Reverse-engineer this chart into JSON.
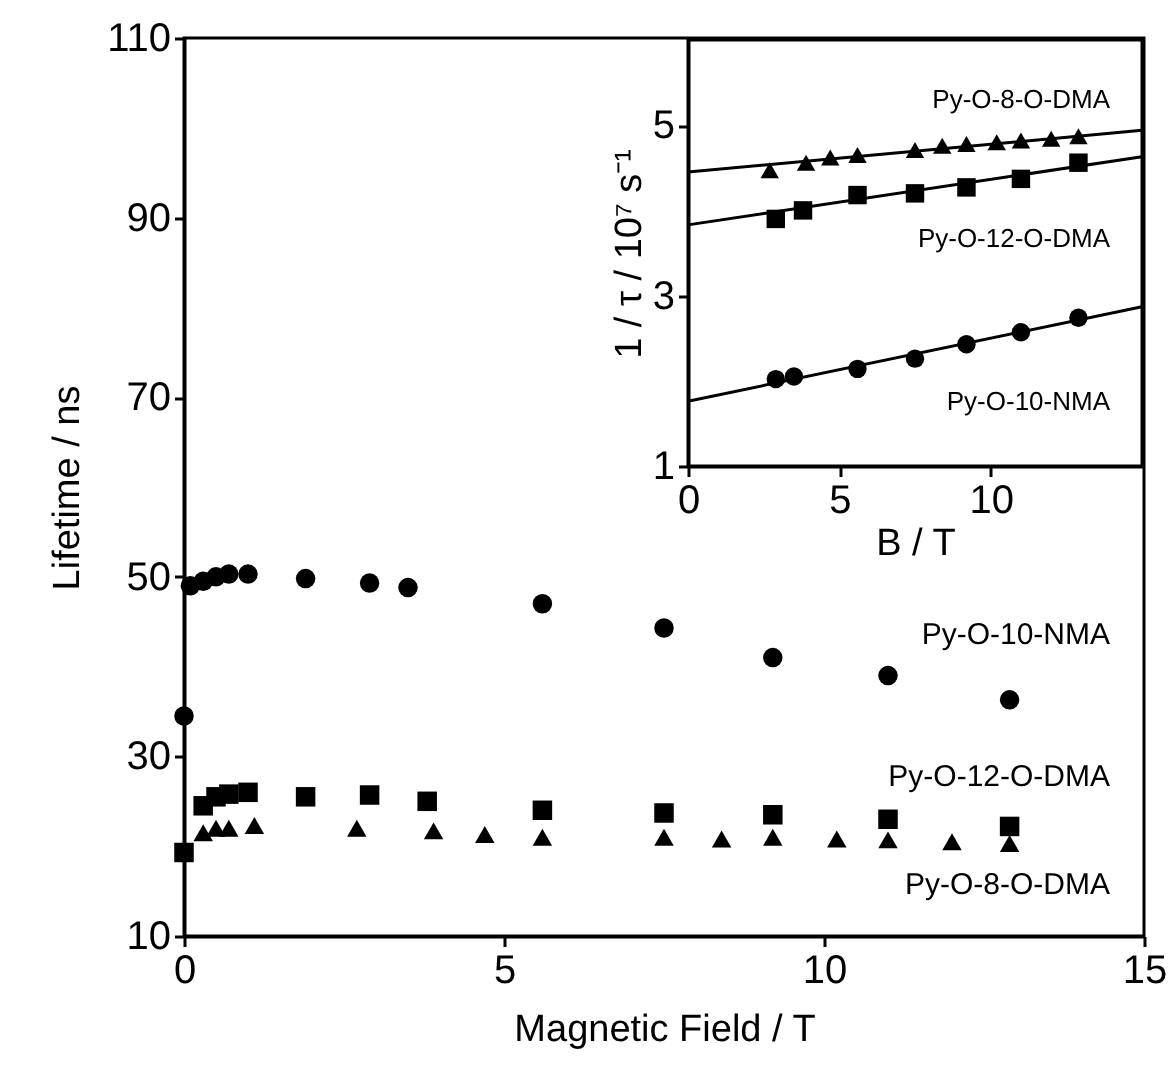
{
  "chart_data": [
    {
      "type": "scatter",
      "xlabel": "Magnetic Field / T",
      "ylabel": "Lifetime / ns",
      "xlim": [
        0,
        15
      ],
      "xticks": [
        0,
        5,
        10,
        15
      ],
      "ylim": [
        10,
        110
      ],
      "yticks": [
        10,
        30,
        50,
        70,
        90,
        110
      ],
      "grid": false,
      "series": [
        {
          "name": "Py-O-10-NMA",
          "color": "#000000",
          "marker": "circle",
          "x": [
            0,
            0.1,
            0.3,
            0.5,
            0.7,
            1.0,
            1.9,
            2.9,
            3.5,
            5.6,
            7.5,
            9.2,
            11,
            12.9
          ],
          "values": [
            34.5,
            49,
            49.5,
            50,
            50.3,
            50.3,
            49.8,
            49.3,
            48.8,
            47,
            44.3,
            41,
            39,
            36.3
          ]
        },
        {
          "name": "Py-O-12-O-DMA",
          "color": "#000000",
          "marker": "square",
          "x": [
            0,
            0.3,
            0.5,
            0.7,
            1.0,
            1.9,
            2.9,
            3.8,
            5.6,
            7.5,
            9.2,
            11,
            12.9
          ],
          "values": [
            19.3,
            24.5,
            25.5,
            25.8,
            26,
            25.5,
            25.7,
            25,
            24,
            23.7,
            23.5,
            23,
            22.2
          ]
        },
        {
          "name": "Py-O-8-O-DMA",
          "color": "#000000",
          "marker": "triangle",
          "x": [
            0.3,
            0.5,
            0.7,
            1.1,
            2.7,
            3.9,
            4.7,
            5.6,
            7.5,
            8.4,
            9.2,
            10.2,
            11,
            12,
            12.9
          ],
          "values": [
            21.5,
            22,
            22,
            22.3,
            22,
            21.7,
            21.3,
            21,
            21,
            20.8,
            21,
            20.8,
            20.7,
            20.5,
            20.3
          ]
        }
      ]
    },
    {
      "type": "scatter",
      "xlabel": "B / T",
      "ylabel": "1 / τ / 10⁷ s⁻¹",
      "xlim": [
        0,
        15
      ],
      "xticks": [
        0,
        5,
        10
      ],
      "ylim": [
        1,
        6
      ],
      "yticks": [
        1,
        3,
        5
      ],
      "grid": false,
      "series": [
        {
          "name": "Py-O-8-O-DMA",
          "color": "#000000",
          "marker": "triangle",
          "x": [
            2.7,
            3.9,
            4.7,
            5.6,
            7.5,
            8.4,
            9.2,
            10.2,
            11,
            12,
            12.9
          ],
          "values": [
            4.47,
            4.56,
            4.62,
            4.65,
            4.71,
            4.76,
            4.78,
            4.8,
            4.82,
            4.84,
            4.87
          ]
        },
        {
          "name": "Py-O-12-O-DMA",
          "color": "#000000",
          "marker": "square",
          "x": [
            2.9,
            3.8,
            5.6,
            7.5,
            9.2,
            11,
            12.9
          ],
          "values": [
            3.9,
            4.0,
            4.18,
            4.2,
            4.27,
            4.37,
            4.56
          ]
        },
        {
          "name": "Py-O-10-NMA",
          "color": "#000000",
          "marker": "circle",
          "x": [
            2.9,
            3.5,
            5.6,
            7.5,
            9.2,
            11,
            12.9
          ],
          "values": [
            2.02,
            2.05,
            2.14,
            2.26,
            2.43,
            2.57,
            2.74
          ]
        },
        {
          "type": "line",
          "color": "#000000",
          "marker": "none",
          "x": [
            0,
            15
          ],
          "values": [
            4.45,
            4.94
          ]
        },
        {
          "type": "line",
          "color": "#000000",
          "marker": "none",
          "x": [
            0,
            15
          ],
          "values": [
            3.83,
            4.63
          ]
        },
        {
          "type": "line",
          "color": "#000000",
          "marker": "none",
          "x": [
            0,
            15
          ],
          "values": [
            1.76,
            2.87
          ]
        }
      ]
    }
  ]
}
